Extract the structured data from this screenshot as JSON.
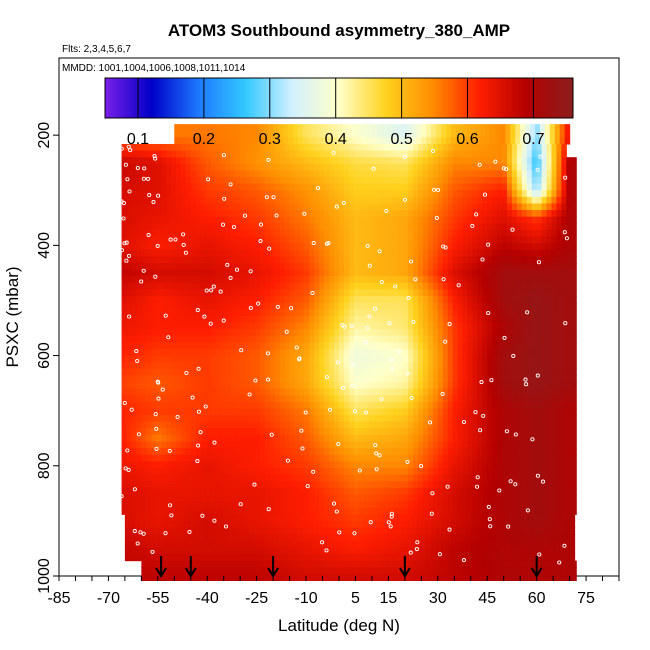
{
  "chart_data": {
    "type": "heatmap",
    "title": "ATOM3 Southbound asymmetry_380_AMP",
    "subtitle_flights": "Flts: 2,3,4,5,6,7",
    "subtitle_dates": "MMDD: 1001,1004,1006,1008,1011,1014",
    "xlabel": "Latitude (deg N)",
    "ylabel": "PSXC (mbar)",
    "xlim": [
      -85,
      85
    ],
    "ylim": [
      1000,
      60
    ],
    "x_ticks": [
      -85,
      -70,
      -55,
      -40,
      -25,
      -10,
      5,
      15,
      30,
      45,
      60,
      75
    ],
    "x_tick_labels": [
      "-85",
      "-70",
      "-55",
      "-40",
      "-25",
      "-10",
      "5",
      "15",
      "30",
      "45",
      "60",
      "75"
    ],
    "y_ticks": [
      200,
      400,
      600,
      800,
      1000
    ],
    "y_tick_labels": [
      "200",
      "400",
      "600",
      "800",
      "1000"
    ],
    "colorbar": {
      "range": [
        0.05,
        0.76
      ],
      "ticks": [
        0.1,
        0.2,
        0.3,
        0.4,
        0.5,
        0.6,
        0.7
      ],
      "tick_labels": [
        "0.1",
        "0.2",
        "0.3",
        "0.4",
        "0.5",
        "0.6",
        "0.7"
      ],
      "colors": [
        "#7a1fe8",
        "#0000c8",
        "#1e78ff",
        "#32c8ff",
        "#d2f0ff",
        "#ffffc8",
        "#ffd21e",
        "#ff8c00",
        "#ff1e00",
        "#b40000",
        "#8c1e1e"
      ]
    },
    "profile_markers_lat": [
      -54,
      -45,
      -20,
      20,
      60
    ],
    "data_extent": {
      "lat_min": -66,
      "lat_max": 72,
      "p_top": 180,
      "p_bottom": 1000
    },
    "levels_mbar": [
      200,
      250,
      300,
      350,
      400,
      450,
      500,
      550,
      600,
      650,
      700,
      750,
      800,
      850,
      900,
      950,
      1000
    ],
    "latitude_bins": [
      -70,
      -55,
      -40,
      -25,
      -10,
      5,
      20,
      35,
      50,
      60,
      70
    ],
    "values_by_level": [
      [
        null,
        null,
        0.56,
        0.55,
        0.45,
        0.4,
        0.35,
        0.5,
        0.55,
        0.3,
        0.65
      ],
      [
        0.68,
        0.65,
        0.58,
        0.54,
        0.5,
        0.46,
        0.45,
        0.55,
        0.55,
        0.25,
        0.7
      ],
      [
        0.66,
        0.65,
        0.6,
        0.58,
        0.54,
        0.48,
        0.48,
        0.58,
        0.62,
        0.3,
        0.7
      ],
      [
        0.66,
        0.64,
        0.62,
        0.6,
        0.56,
        0.5,
        0.52,
        0.6,
        0.65,
        0.6,
        0.7
      ],
      [
        0.66,
        0.62,
        0.64,
        0.62,
        0.58,
        0.5,
        0.52,
        0.62,
        0.68,
        0.66,
        0.7
      ],
      [
        0.68,
        0.66,
        0.66,
        0.64,
        0.6,
        0.5,
        0.52,
        0.65,
        0.72,
        0.72,
        0.72
      ],
      [
        0.66,
        0.62,
        0.64,
        0.62,
        0.58,
        0.45,
        0.45,
        0.62,
        0.72,
        0.74,
        0.72
      ],
      [
        0.64,
        0.62,
        0.62,
        0.6,
        0.55,
        0.42,
        0.44,
        0.6,
        0.7,
        0.74,
        0.72
      ],
      [
        0.62,
        0.6,
        0.6,
        0.58,
        0.52,
        0.38,
        0.4,
        0.6,
        0.72,
        0.74,
        0.72
      ],
      [
        0.6,
        0.58,
        0.6,
        0.58,
        0.52,
        0.4,
        0.42,
        0.6,
        0.72,
        0.74,
        0.72
      ],
      [
        0.62,
        0.6,
        0.6,
        0.6,
        0.56,
        0.45,
        0.48,
        0.62,
        0.7,
        0.72,
        0.7
      ],
      [
        0.64,
        0.56,
        0.62,
        0.62,
        0.58,
        0.5,
        0.52,
        0.62,
        0.7,
        0.72,
        0.7
      ],
      [
        0.64,
        0.62,
        0.64,
        0.62,
        0.6,
        0.55,
        0.55,
        0.64,
        0.7,
        0.72,
        0.7
      ],
      [
        0.66,
        0.64,
        0.64,
        0.64,
        0.62,
        0.58,
        0.6,
        0.66,
        0.7,
        0.72,
        0.7
      ],
      [
        0.66,
        0.64,
        0.66,
        0.64,
        0.62,
        0.6,
        0.62,
        0.66,
        0.7,
        0.72,
        0.7
      ],
      [
        0.68,
        0.66,
        0.66,
        0.66,
        0.64,
        0.62,
        0.64,
        0.68,
        0.7,
        0.7,
        0.7
      ],
      [
        0.68,
        0.68,
        0.68,
        0.68,
        0.66,
        0.66,
        0.66,
        0.68,
        0.7,
        0.7,
        0.7
      ]
    ]
  }
}
